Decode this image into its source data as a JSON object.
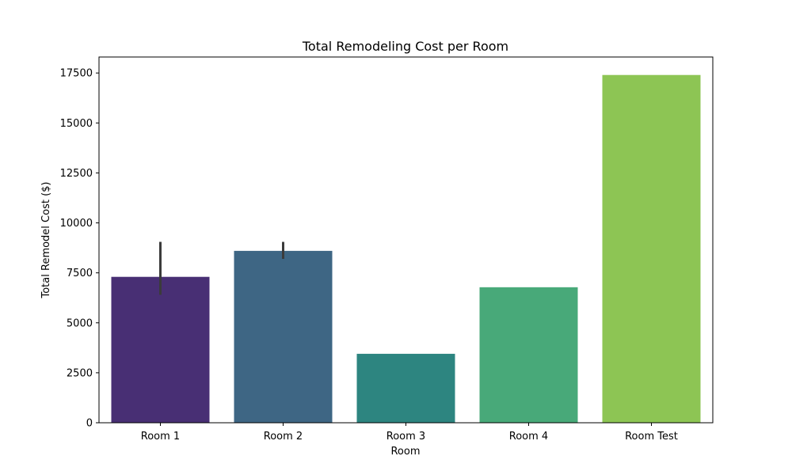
{
  "chart_data": {
    "type": "bar",
    "title": "Total Remodeling Cost per Room",
    "xlabel": "Room",
    "ylabel": "Total Remodel Cost ($)",
    "categories": [
      "Room 1",
      "Room 2",
      "Room 3",
      "Room 4",
      "Room Test"
    ],
    "values": [
      7300,
      8600,
      3450,
      6780,
      17400
    ],
    "error_bars": [
      {
        "low": 6400,
        "high": 9050
      },
      {
        "low": 8200,
        "high": 9050
      },
      null,
      null,
      null
    ],
    "colors": [
      "#482f74",
      "#3e6684",
      "#2d8580",
      "#48a979",
      "#8dc554"
    ],
    "error_color": "#3b3b3b",
    "ylim": [
      0,
      18300
    ],
    "yticks": [
      0,
      2500,
      5000,
      7500,
      10000,
      12500,
      15000,
      17500
    ],
    "grid": false,
    "legend": "none"
  }
}
